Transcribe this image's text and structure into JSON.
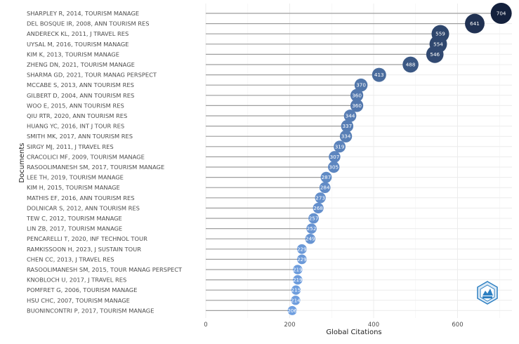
{
  "chart_data": {
    "type": "lollipop",
    "title": "",
    "xlabel": "Global Citations",
    "ylabel": "Documents",
    "xlim": [
      0,
      730
    ],
    "xticks": [
      0,
      200,
      400,
      600
    ],
    "grid": true,
    "colors": {
      "low": "#6f9fe0",
      "high": "#14213d",
      "stem": "#9e9e9e"
    },
    "categories": [
      "SHARPLEY R, 2014, TOURISM MANAGE",
      "DEL BOSQUE IR, 2008, ANN TOURISM RES",
      "ANDERECK KL, 2011, J TRAVEL RES",
      "UYSAL M, 2016, TOURISM MANAGE",
      "KIM K, 2013, TOURISM MANAGE",
      "ZHENG DN, 2021, TOURISM MANAGE",
      "SHARMA GD, 2021, TOUR MANAG PERSPECT",
      "MCCABE S, 2013, ANN TOURISM RES",
      "GILBERT D, 2004, ANN TOURISM RES",
      "WOO E, 2015, ANN TOURISM RES",
      "QIU RTR, 2020, ANN TOURISM RES",
      "HUANG YC, 2016, INT J TOUR RES",
      "SMITH MK, 2017, ANN TOURISM RES",
      "SIRGY MJ, 2011, J TRAVEL RES",
      "CRACOLICI MF, 2009, TOURISM MANAGE",
      "RASOOLIMANESH SM, 2017, TOURISM MANAGE",
      "LEE TH, 2019, TOURISM MANAGE",
      "KIM H, 2015, TOURISM MANAGE",
      "MATHIS EF, 2016, ANN TOURISM RES",
      "DOLNICAR S, 2012, ANN TOURISM RES",
      "TEW C, 2012, TOURISM MANAGE",
      "LIN ZB, 2017, TOURISM MANAGE",
      "PENCARELLI T, 2020, INF TECHNOL TOUR",
      "RAMKISSOON H, 2023, J SUSTAIN TOUR",
      "CHEN CC, 2013, J TRAVEL RES",
      "RASOOLIMANESH SM, 2015, TOUR MANAG PERSPECT",
      "KNOBLOCH U, 2017, J TRAVEL RES",
      "POMFRET G, 2006, TOURISM MANAGE",
      "HSU CHC, 2007, TOURISM MANAGE",
      "BUONINCONTRI P, 2017, TOURISM MANAGE"
    ],
    "values": [
      704,
      641,
      559,
      554,
      546,
      488,
      413,
      370,
      360,
      360,
      344,
      337,
      334,
      319,
      307,
      305,
      287,
      284,
      273,
      268,
      257,
      252,
      249,
      229,
      229,
      219,
      219,
      215,
      214,
      206
    ]
  },
  "logo": {
    "label": "BIBLIOMETRIX"
  }
}
